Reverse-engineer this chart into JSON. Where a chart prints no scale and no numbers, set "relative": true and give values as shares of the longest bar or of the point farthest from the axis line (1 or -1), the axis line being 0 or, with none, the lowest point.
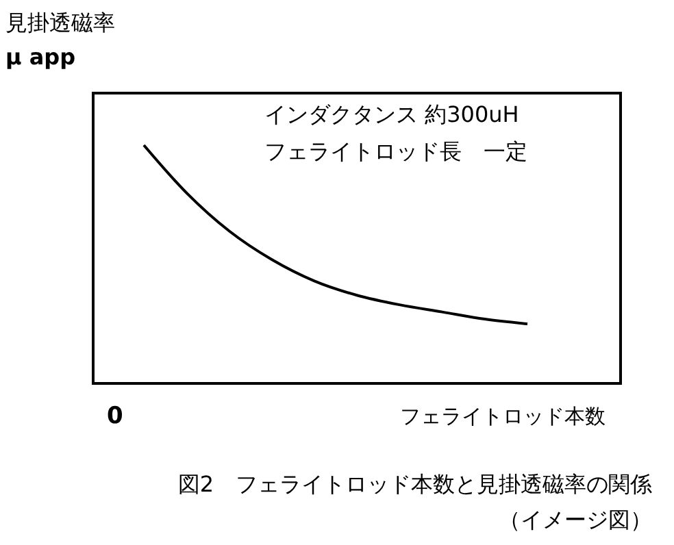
{
  "chart_data": {
    "type": "line",
    "relative": true,
    "ylabel": "見掛透磁率\nμ app",
    "xlabel": "フェライトロッド本数",
    "categories": [
      null,
      null,
      null,
      null,
      null,
      null,
      null,
      null,
      null,
      null
    ],
    "series": [
      {
        "color": "#000000",
        "values": [
          1.0,
          0.8,
          0.64,
          0.52,
          0.43,
          0.37,
          0.33,
          0.3,
          0.27,
          0.25
        ]
      }
    ],
    "marker": "none",
    "line_style": "solid",
    "annotations": [
      "0",
      "インダクタンス 約300uH",
      "フェライトロッド長　一定",
      "図2　フェライトロッド本数と見掛透磁率の関係",
      "（イメージ図）"
    ]
  }
}
